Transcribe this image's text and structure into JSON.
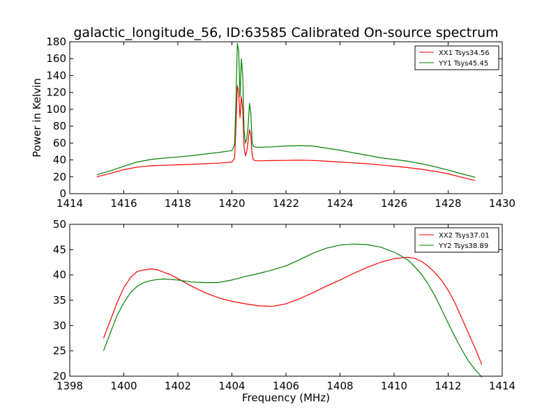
{
  "chart_data": [
    {
      "type": "line",
      "title": "galactic_longitude_56, ID:63585 Calibrated On-source spectrum",
      "xlabel": "",
      "ylabel": "Power in Kelvin",
      "xlim": [
        1414,
        1430
      ],
      "ylim": [
        0,
        180
      ],
      "xticks": [
        "1414",
        "1416",
        "1418",
        "1420",
        "1422",
        "1424",
        "1426",
        "1428",
        "1430"
      ],
      "yticks": [
        "0",
        "20",
        "40",
        "60",
        "80",
        "100",
        "120",
        "140",
        "160",
        "180"
      ],
      "legend_position": "top-right",
      "grid": false,
      "series": [
        {
          "name": "XX1 Tsys34.56",
          "color": "#ff0000",
          "x": [
            1415.0,
            1415.5,
            1416.0,
            1416.5,
            1417.0,
            1417.5,
            1418.0,
            1418.5,
            1419.0,
            1419.5,
            1420.0,
            1420.1,
            1420.15,
            1420.2,
            1420.25,
            1420.3,
            1420.35,
            1420.4,
            1420.45,
            1420.5,
            1420.55,
            1420.6,
            1420.65,
            1420.7,
            1420.75,
            1420.8,
            1420.9,
            1421.0,
            1421.5,
            1422.0,
            1422.5,
            1423.0,
            1423.5,
            1424.0,
            1424.5,
            1425.0,
            1425.5,
            1426.0,
            1426.5,
            1427.0,
            1427.5,
            1428.0,
            1428.5,
            1429.0
          ],
          "values": [
            20,
            24,
            28.5,
            31.5,
            33,
            33.7,
            34.2,
            34.8,
            35.5,
            36.2,
            37.5,
            42,
            80,
            128,
            120,
            90,
            115,
            100,
            55,
            45,
            50,
            62,
            76,
            70,
            45,
            40,
            39,
            39,
            39.3,
            39.5,
            39.7,
            39.4,
            38.5,
            37.5,
            36.5,
            35.5,
            34,
            32.5,
            31,
            29,
            26.5,
            23.5,
            19.5,
            15.5
          ]
        },
        {
          "name": "YY1 Tsys45.45",
          "color": "#008000",
          "x": [
            1415.0,
            1415.5,
            1416.0,
            1416.5,
            1417.0,
            1417.5,
            1418.0,
            1418.5,
            1419.0,
            1419.5,
            1420.0,
            1420.1,
            1420.15,
            1420.2,
            1420.25,
            1420.3,
            1420.35,
            1420.4,
            1420.45,
            1420.5,
            1420.55,
            1420.6,
            1420.65,
            1420.7,
            1420.75,
            1420.8,
            1420.9,
            1421.0,
            1421.5,
            1422.0,
            1422.5,
            1423.0,
            1423.5,
            1424.0,
            1424.5,
            1425.0,
            1425.5,
            1426.0,
            1426.5,
            1427.0,
            1427.5,
            1428.0,
            1428.5,
            1429.0
          ],
          "values": [
            22.5,
            27,
            32.5,
            37.5,
            40.5,
            42.2,
            43.5,
            45,
            47,
            48.8,
            51,
            58,
            110,
            178,
            170,
            115,
            160,
            140,
            75,
            60,
            65,
            80,
            107,
            95,
            60,
            56,
            55,
            55,
            55.5,
            56.5,
            57,
            56.5,
            54,
            51.5,
            48.5,
            45.5,
            42.5,
            40.5,
            38.5,
            35.5,
            32,
            28,
            23.5,
            19.5
          ]
        }
      ]
    },
    {
      "type": "line",
      "title": "",
      "xlabel": "Frequency (MHz)",
      "ylabel": "",
      "xlim": [
        1398,
        1414
      ],
      "ylim": [
        20,
        50
      ],
      "xticks": [
        "1398",
        "1400",
        "1402",
        "1404",
        "1406",
        "1408",
        "1410",
        "1412",
        "1414"
      ],
      "yticks": [
        "20",
        "25",
        "30",
        "35",
        "40",
        "45",
        "50"
      ],
      "legend_position": "top-right",
      "grid": false,
      "series": [
        {
          "name": "XX2 Tsys37.01",
          "color": "#ff0000",
          "x": [
            1399.25,
            1399.5,
            1399.75,
            1400.0,
            1400.25,
            1400.5,
            1400.75,
            1401.0,
            1401.25,
            1401.5,
            1401.75,
            1402.0,
            1402.5,
            1403.0,
            1403.5,
            1404.0,
            1404.5,
            1405.0,
            1405.5,
            1406.0,
            1406.5,
            1407.0,
            1407.5,
            1408.0,
            1408.5,
            1409.0,
            1409.5,
            1410.0,
            1410.5,
            1410.75,
            1411.0,
            1411.25,
            1411.5,
            1411.75,
            1412.0,
            1412.25,
            1412.5,
            1412.75,
            1413.0,
            1413.25
          ],
          "values": [
            27.5,
            31,
            34.5,
            37.5,
            39.5,
            40.7,
            41,
            41.2,
            41,
            40.5,
            40,
            39.3,
            37.8,
            36.5,
            35.5,
            34.8,
            34.3,
            33.9,
            33.8,
            34.3,
            35.3,
            36.5,
            37.8,
            39,
            40.3,
            41.5,
            42.5,
            43.2,
            43.5,
            43.3,
            42.7,
            41.8,
            40.5,
            39,
            37,
            34.5,
            31.5,
            28.5,
            25.5,
            22.3
          ]
        },
        {
          "name": "YY2 Tsys38.89",
          "color": "#008000",
          "x": [
            1399.25,
            1399.5,
            1399.75,
            1400.0,
            1400.25,
            1400.5,
            1400.75,
            1401.0,
            1401.25,
            1401.5,
            1401.75,
            1402.0,
            1402.5,
            1403.0,
            1403.5,
            1404.0,
            1404.5,
            1405.0,
            1405.5,
            1406.0,
            1406.5,
            1407.0,
            1407.5,
            1408.0,
            1408.5,
            1409.0,
            1409.5,
            1410.0,
            1410.25,
            1410.5,
            1410.75,
            1411.0,
            1411.25,
            1411.5,
            1411.75,
            1412.0,
            1412.25,
            1412.5,
            1412.75,
            1413.0,
            1413.25
          ],
          "values": [
            25,
            28.5,
            32,
            34.5,
            36.5,
            37.8,
            38.5,
            38.9,
            39.1,
            39.2,
            39.1,
            39,
            38.6,
            38.5,
            38.5,
            39,
            39.7,
            40.3,
            41,
            41.8,
            43,
            44.3,
            45.3,
            45.9,
            46.1,
            46,
            45.5,
            44.5,
            43.8,
            43,
            41.7,
            40.2,
            38.3,
            36,
            33.3,
            30.5,
            27.8,
            25.3,
            23,
            21.3,
            19.8
          ]
        }
      ]
    }
  ]
}
